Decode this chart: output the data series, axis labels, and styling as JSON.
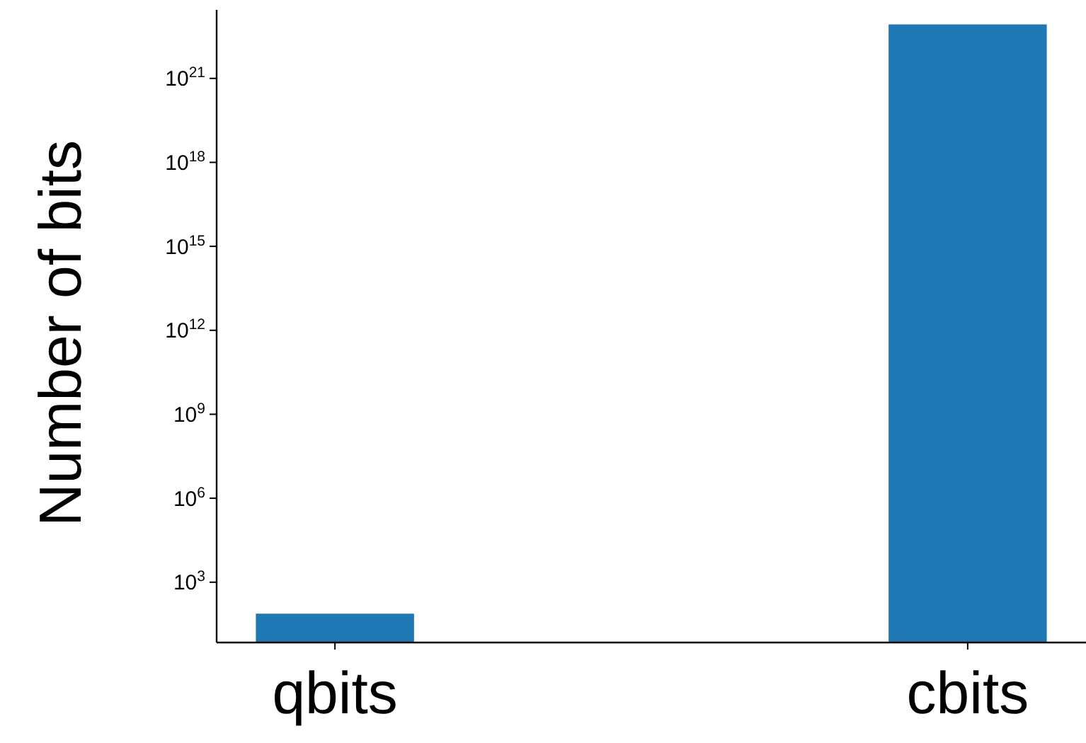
{
  "chart_data": {
    "type": "bar",
    "ylabel": "Number of bits",
    "categories": [
      "qbits",
      "cbits"
    ],
    "values": [
      75,
      8.5e+22
    ],
    "color": "#1f77b4",
    "log": true,
    "ylim": [
      7,
      2.8e+23
    ],
    "yticks": [
      {
        "value": 1000,
        "label": "10$^{3}$"
      },
      {
        "value": 1000000.0,
        "label": "10$^{6}$"
      },
      {
        "value": 1000000000.0,
        "label": "10$^{9}$"
      },
      {
        "value": 1000000000000.0,
        "label": "10$^{12}$"
      },
      {
        "value": 1000000000000000.0,
        "label": "10$^{15}$"
      },
      {
        "value": 1e+18,
        "label": "10$^{18}$"
      },
      {
        "value": 1e+21,
        "label": "10$^{21}$"
      }
    ],
    "grid": false
  }
}
